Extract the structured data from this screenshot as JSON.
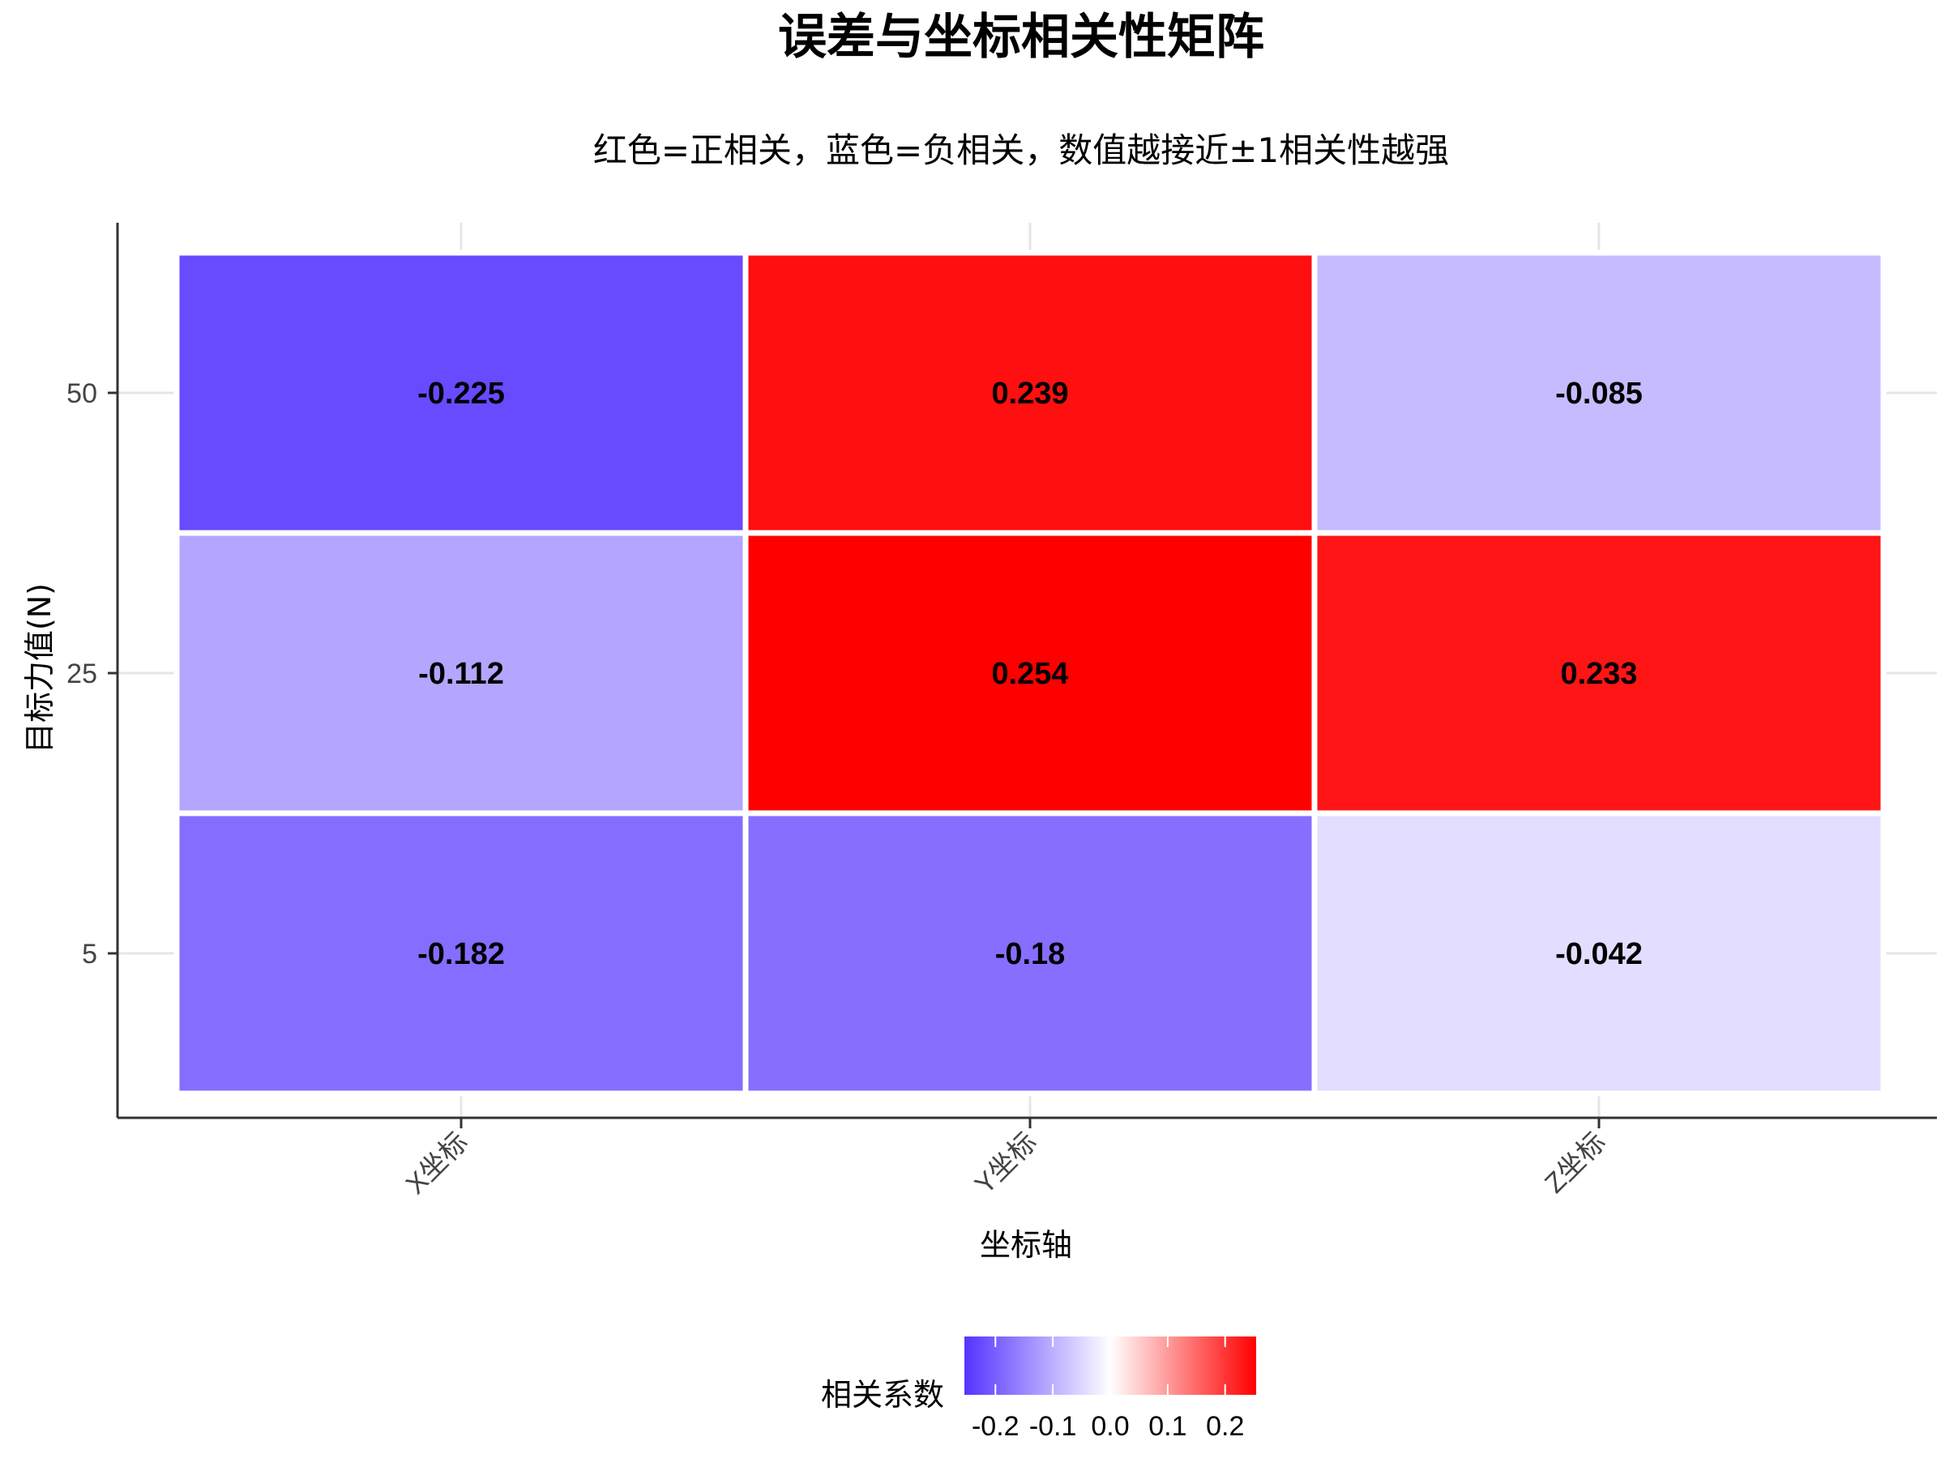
{
  "chart_data": {
    "type": "heatmap",
    "title": "误差与坐标相关性矩阵",
    "subtitle": "红色=正相关，蓝色=负相关，数值越接近±1相关性越强",
    "xlabel": "坐标轴",
    "ylabel": "目标力值(N)",
    "x_categories": [
      "X坐标",
      "Y坐标",
      "Z坐标"
    ],
    "y_categories": [
      "50",
      "25",
      "5"
    ],
    "values": [
      [
        -0.225,
        0.239,
        -0.085
      ],
      [
        -0.112,
        0.254,
        0.233
      ],
      [
        -0.182,
        -0.18,
        -0.042
      ]
    ],
    "value_labels": [
      [
        "-0.225",
        "0.239",
        "-0.085"
      ],
      [
        "-0.112",
        "0.254",
        "0.233"
      ],
      [
        "-0.182",
        "-0.18",
        "-0.042"
      ]
    ],
    "color_scale": {
      "low": "#5533ff",
      "mid": "#ffffff",
      "high": "#ff0000",
      "limits": [
        -0.254,
        0.254
      ]
    },
    "legend": {
      "title": "相关系数",
      "position": "bottom",
      "ticks": [
        "-0.2",
        "-0.1",
        "0.0",
        "0.1",
        "0.2"
      ],
      "tick_values": [
        -0.2,
        -0.1,
        0.0,
        0.1,
        0.2
      ]
    }
  }
}
